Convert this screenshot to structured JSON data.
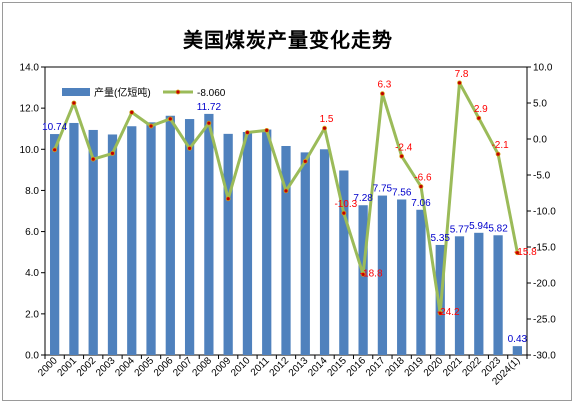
{
  "chart_data": {
    "type": "bar",
    "title": "美国煤炭产量变化走势",
    "categories": [
      "2000",
      "2001",
      "2002",
      "2003",
      "2004",
      "2005",
      "2006",
      "2007",
      "2008",
      "2009",
      "2010",
      "2011",
      "2012",
      "2013",
      "2014",
      "2015",
      "2016",
      "2017",
      "2018",
      "2019",
      "2020",
      "2021",
      "2022",
      "2023",
      "2024(1)"
    ],
    "y_left": {
      "range": [
        0,
        14
      ],
      "step": 2,
      "tick_labels": [
        "0.0",
        "2.0",
        "4.0",
        "6.0",
        "8.0",
        "10.0",
        "12.0",
        "14.0"
      ]
    },
    "y_right": {
      "range": [
        -30,
        10
      ],
      "step": 5,
      "tick_labels": [
        "-30.0",
        "-25.0",
        "-20.0",
        "-15.0",
        "-10.0",
        "-5.0",
        "0.0",
        "5.0",
        "10.0"
      ]
    },
    "series": [
      {
        "name": "产量(亿短吨)",
        "kind": "bar",
        "axis": "left",
        "color": "#4f81bd",
        "values": [
          10.74,
          11.28,
          10.94,
          10.72,
          11.12,
          11.31,
          11.63,
          11.47,
          11.72,
          10.75,
          10.84,
          10.96,
          10.16,
          9.85,
          10.0,
          8.97,
          7.28,
          7.75,
          7.56,
          7.06,
          5.35,
          5.77,
          5.94,
          5.82,
          0.43
        ],
        "data_labels": {
          "0": "10.74",
          "8": "11.72",
          "16": "7.28",
          "17": "7.75",
          "18": "7.56",
          "19": "7.06",
          "20": "5.35",
          "21": "5.77",
          "22": "5.94",
          "23": "5.82",
          "24": "0.43"
        },
        "label_color": "#0000cc"
      },
      {
        "name": "-8.060",
        "kind": "line",
        "axis": "right",
        "color": "#9bbb59",
        "marker_color": "#c00000",
        "values": [
          -1.5,
          5.0,
          -2.8,
          -2.0,
          3.7,
          1.8,
          2.8,
          -1.3,
          2.2,
          -8.3,
          0.9,
          1.2,
          -7.2,
          -3.1,
          1.5,
          -10.3,
          -18.8,
          6.3,
          -2.4,
          -6.6,
          -24.2,
          7.8,
          2.9,
          -2.1,
          -15.8
        ],
        "data_labels": {
          "14": "1.5",
          "15": "-10.3",
          "16": "-18.8",
          "17": "6.3",
          "18": "-2.4",
          "19": "-6.6",
          "20": "-24.2",
          "21": "7.8",
          "22": "2.9",
          "23": "-2.1",
          "24": "-15.8"
        },
        "label_color": "#ff0000"
      }
    ],
    "legend_position": "top-left",
    "grid": "none"
  }
}
